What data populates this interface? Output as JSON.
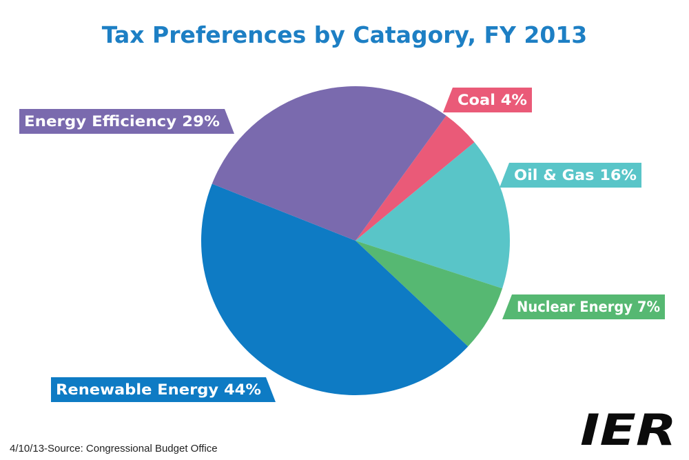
{
  "chart_data": {
    "type": "pie",
    "title": "Tax Preferences by Catagory, FY 2013",
    "unit": "%",
    "slices": [
      {
        "label": "Coal",
        "value": 4,
        "color": "#ea5a78"
      },
      {
        "label": "Oil & Gas",
        "value": 16,
        "color": "#59c5c8"
      },
      {
        "label": "Nuclear Energy",
        "value": 7,
        "color": "#56b872"
      },
      {
        "label": "Renewable Energy",
        "value": 44,
        "color": "#0e7bc4"
      },
      {
        "label": "Energy Efficiency",
        "value": 29,
        "color": "#7a6aae"
      }
    ],
    "label_texts": [
      "Coal 4%",
      "Oil & Gas 16%",
      "Nuclear Energy 7%",
      "Renewable Energy 44%",
      "Energy Efficiency 29%"
    ]
  },
  "source": "4/10/13-Source: Congressional Budget Office",
  "logo": {
    "text": "IER",
    "color": "#0b0b0b",
    "accent": "#ffffff"
  },
  "title_color": "#1d7fc4"
}
